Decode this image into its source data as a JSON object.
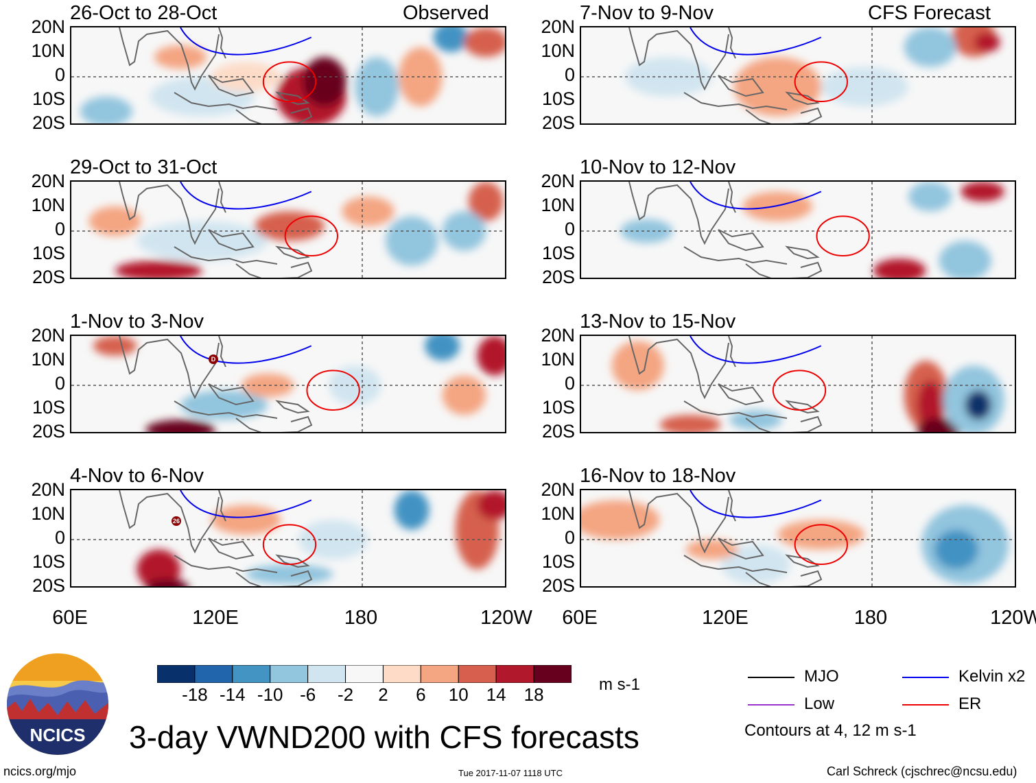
{
  "corner_labels": {
    "left": "Observed",
    "right": "CFS Forecast"
  },
  "panels": [
    {
      "title": "26-Oct to 28-Oct"
    },
    {
      "title": "29-Oct to 31-Oct"
    },
    {
      "title": "1-Nov to 3-Nov"
    },
    {
      "title": "4-Nov to 6-Nov"
    },
    {
      "title": "7-Nov to 9-Nov"
    },
    {
      "title": "10-Nov to 12-Nov"
    },
    {
      "title": "13-Nov to 15-Nov"
    },
    {
      "title": "16-Nov to 18-Nov"
    }
  ],
  "chart_data": {
    "type": "heatmap",
    "title": "3-day VWND200 with CFS forecasts",
    "variable": "VWND200",
    "units": "m s-1",
    "x_ticks": [
      "60E",
      "120E",
      "180",
      "120W"
    ],
    "y_ticks": [
      "20N",
      "10N",
      "0",
      "10S",
      "20S"
    ],
    "xlim": [
      "60E",
      "120W"
    ],
    "ylim": [
      "20S",
      "20N"
    ],
    "colorbar": {
      "levels": [
        "-18",
        "-14",
        "-10",
        "-6",
        "-2",
        "2",
        "6",
        "10",
        "14",
        "18"
      ],
      "colors": [
        "#08306b",
        "#2166ac",
        "#4393c3",
        "#92c5de",
        "#d1e5f0",
        "#f7f7f7",
        "#fddbc7",
        "#f4a582",
        "#d6604d",
        "#b2182b",
        "#67001f"
      ]
    },
    "contour_legend": [
      {
        "label": "MJO",
        "color": "#000000"
      },
      {
        "label": "Kelvin x2",
        "color": "#0000ee"
      },
      {
        "label": "Low",
        "color": "#9932cc"
      },
      {
        "label": "ER",
        "color": "#ee0000"
      }
    ],
    "contour_note": "Contours at 4, 12 m s-1"
  },
  "logo_text": "NCICS",
  "footer": {
    "url": "ncics.org/mjo",
    "timestamp": "Tue 2017-11-07 1118 UTC",
    "author": "Carl Schreck (cjschrec@ncsu.edu)"
  },
  "storm_markers": [
    "D",
    "26"
  ]
}
